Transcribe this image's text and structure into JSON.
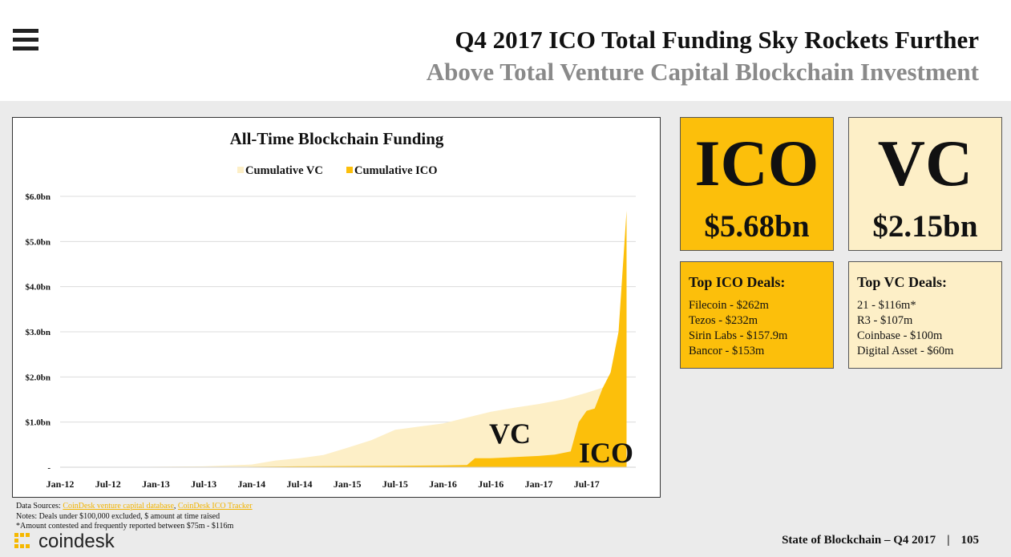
{
  "header": {
    "title": "Q4 2017 ICO Total Funding Sky Rockets Further",
    "subtitle": "Above Total Venture Capital Blockchain Investment",
    "menu_icon": "hamburger-menu-icon"
  },
  "colors": {
    "ico": "#fcbf0b",
    "vc": "#fdefc7",
    "ico_link": "#f2b400"
  },
  "chart_data": {
    "type": "area",
    "title": "All-Time Blockchain Funding",
    "xlabel": "",
    "ylabel": "",
    "ylim": [
      0,
      6.0
    ],
    "y_ticks": [
      "-",
      "$1.0bn",
      "$2.0bn",
      "$3.0bn",
      "$4.0bn",
      "$5.0bn",
      "$6.0bn"
    ],
    "x_ticks": [
      "Jan-12",
      "Jul-12",
      "Jan-13",
      "Jul-13",
      "Jan-14",
      "Jul-14",
      "Jan-15",
      "Jul-15",
      "Jan-16",
      "Jul-16",
      "Jan-17",
      "Jul-17"
    ],
    "legend": [
      "Cumulative VC",
      "Cumulative ICO"
    ],
    "legend_position": "top-center",
    "grid": true,
    "annotations": [
      "VC",
      "ICO"
    ],
    "series": [
      {
        "name": "Cumulative VC",
        "color": "#fdefc7",
        "points": [
          [
            "2012-01",
            0.0
          ],
          [
            "2012-07",
            0.0
          ],
          [
            "2013-01",
            0.01
          ],
          [
            "2013-07",
            0.02
          ],
          [
            "2014-01",
            0.06
          ],
          [
            "2014-04",
            0.15
          ],
          [
            "2014-07",
            0.2
          ],
          [
            "2014-10",
            0.27
          ],
          [
            "2015-01",
            0.43
          ],
          [
            "2015-04",
            0.6
          ],
          [
            "2015-07",
            0.83
          ],
          [
            "2015-10",
            0.9
          ],
          [
            "2016-01",
            0.97
          ],
          [
            "2016-04",
            1.1
          ],
          [
            "2016-07",
            1.23
          ],
          [
            "2016-10",
            1.32
          ],
          [
            "2017-01",
            1.4
          ],
          [
            "2017-04",
            1.5
          ],
          [
            "2017-07",
            1.65
          ],
          [
            "2017-10",
            1.82
          ],
          [
            "2017-12",
            2.15
          ]
        ]
      },
      {
        "name": "Cumulative ICO",
        "color": "#fcbf0b",
        "points": [
          [
            "2012-01",
            0.0
          ],
          [
            "2013-07",
            0.0
          ],
          [
            "2014-07",
            0.02
          ],
          [
            "2015-07",
            0.03
          ],
          [
            "2016-01",
            0.04
          ],
          [
            "2016-04",
            0.05
          ],
          [
            "2016-05",
            0.2
          ],
          [
            "2016-07",
            0.2
          ],
          [
            "2017-01",
            0.25
          ],
          [
            "2017-03",
            0.28
          ],
          [
            "2017-05",
            0.35
          ],
          [
            "2017-06",
            1.0
          ],
          [
            "2017-07",
            1.25
          ],
          [
            "2017-08",
            1.3
          ],
          [
            "2017-09",
            1.75
          ],
          [
            "2017-10",
            2.1
          ],
          [
            "2017-11",
            3.0
          ],
          [
            "2017-12",
            5.68
          ]
        ]
      }
    ]
  },
  "ico_box": {
    "label": "ICO",
    "value": "$5.68bn"
  },
  "vc_box": {
    "label": "VC",
    "value": "$2.15bn"
  },
  "ico_deals": {
    "title": "Top ICO Deals:",
    "items": [
      "Filecoin - $262m",
      "Tezos - $232m",
      "Sirin Labs - $157.9m",
      "Bancor - $153m"
    ]
  },
  "vc_deals": {
    "title": "Top VC Deals:",
    "items": [
      "21 - $116m*",
      "R3 - $107m",
      "Coinbase - $100m",
      "Digital Asset - $60m"
    ]
  },
  "footnotes": {
    "sources_prefix": "Data Sources: ",
    "source_1": "CoinDesk venture capital database",
    "source_sep": ", ",
    "source_2": "CoinDesk ICO Tracker",
    "notes": "Notes: Deals under $100,000 excluded, $ amount at time raised",
    "contested": "*Amount contested and frequently reported between $75m - $116m"
  },
  "footer": {
    "logo_text": "coindesk",
    "report": "State of Blockchain – Q4 2017",
    "separator": "|",
    "page_number": "105"
  }
}
